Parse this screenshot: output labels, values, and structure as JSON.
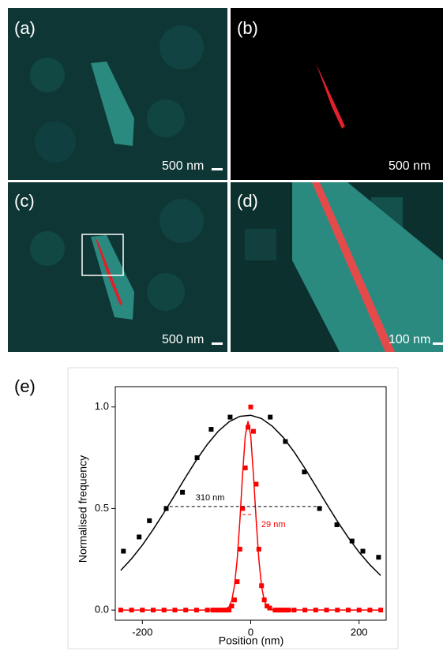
{
  "panels": [
    {
      "label": "(a)",
      "scale": "500 nm"
    },
    {
      "label": "(b)",
      "scale": "500 nm"
    },
    {
      "label": "(c)",
      "scale": "500 nm"
    },
    {
      "label": "(d)",
      "scale": "100 nm"
    }
  ],
  "chart_data": {
    "type": "scatter",
    "label": "(e)",
    "x_label": "Position (nm)",
    "y_label": "Normalised frequency",
    "xlim": [
      -250,
      250
    ],
    "ylim": [
      -0.05,
      1.1
    ],
    "xticks": [
      -200,
      0,
      200
    ],
    "yticks": [
      {
        "value": 0,
        "label": "0.0"
      },
      {
        "value": 0.5,
        "label": "0.5"
      },
      {
        "value": 1,
        "label": "1.0"
      }
    ],
    "series": [
      {
        "color": "#000000",
        "style": "markers",
        "x": [
          -235,
          -206,
          -187,
          -156,
          -126,
          -99,
          -73,
          -38,
          36,
          64,
          99,
          127,
          159,
          187,
          207,
          236
        ],
        "values": [
          0.29,
          0.36,
          0.44,
          0.5,
          0.58,
          0.75,
          0.89,
          0.95,
          0.95,
          0.83,
          0.68,
          0.5,
          0.42,
          0.34,
          0.29,
          0.26
        ]
      },
      {
        "color": "#000000",
        "style": "line",
        "x": [
          -240,
          -220,
          -200,
          -180,
          -160,
          -140,
          -120,
          -100,
          -80,
          -60,
          -40,
          -20,
          0,
          20,
          40,
          60,
          80,
          100,
          120,
          140,
          160,
          180,
          200,
          220,
          240
        ],
        "values": [
          0.195,
          0.253,
          0.32,
          0.397,
          0.48,
          0.567,
          0.655,
          0.74,
          0.816,
          0.88,
          0.927,
          0.954,
          0.959,
          0.943,
          0.905,
          0.85,
          0.779,
          0.698,
          0.611,
          0.523,
          0.437,
          0.357,
          0.285,
          0.223,
          0.17
        ]
      },
      {
        "color": "#ff0000",
        "style": "markers",
        "x": [
          -240,
          -220,
          -200,
          -180,
          -160,
          -140,
          -120,
          -100,
          -80,
          -70,
          -65,
          -60,
          -55,
          -50,
          -45,
          -40,
          -35,
          -30,
          -25,
          -20,
          -15,
          -10,
          -5,
          0,
          5,
          10,
          15,
          20,
          25,
          30,
          35,
          45,
          50,
          55,
          60,
          65,
          70,
          80,
          100,
          120,
          140,
          160,
          180,
          200,
          220,
          240
        ],
        "values": [
          0,
          0,
          0,
          0,
          0,
          0,
          0,
          0,
          0,
          0,
          0,
          0,
          0,
          0,
          0,
          0,
          0.02,
          0.05,
          0.14,
          0.3,
          0.5,
          0.7,
          0.9,
          1.0,
          0.88,
          0.62,
          0.3,
          0.12,
          0.05,
          0.02,
          0.01,
          0,
          0,
          0,
          0,
          0,
          0,
          0,
          0,
          0,
          0,
          0,
          0,
          0,
          0,
          0
        ]
      },
      {
        "color": "#ff0000",
        "style": "line",
        "x": [
          -240,
          -50,
          -40,
          -35,
          -30,
          -25,
          -20,
          -15,
          -10,
          -5,
          0,
          5,
          10,
          15,
          20,
          25,
          30,
          40,
          240
        ],
        "values": [
          0,
          0,
          0.016,
          0.048,
          0.119,
          0.249,
          0.443,
          0.669,
          0.857,
          0.93,
          0.857,
          0.669,
          0.443,
          0.249,
          0.119,
          0.048,
          0.016,
          0.001,
          0
        ]
      }
    ],
    "annotations": [
      {
        "text": "310 nm",
        "color": "#000000",
        "x": [
          -160,
          130
        ],
        "y": 0.51
      },
      {
        "text": "29 nm",
        "color": "#ff0000",
        "x": [
          -15,
          5
        ],
        "y": 0.47
      }
    ]
  }
}
